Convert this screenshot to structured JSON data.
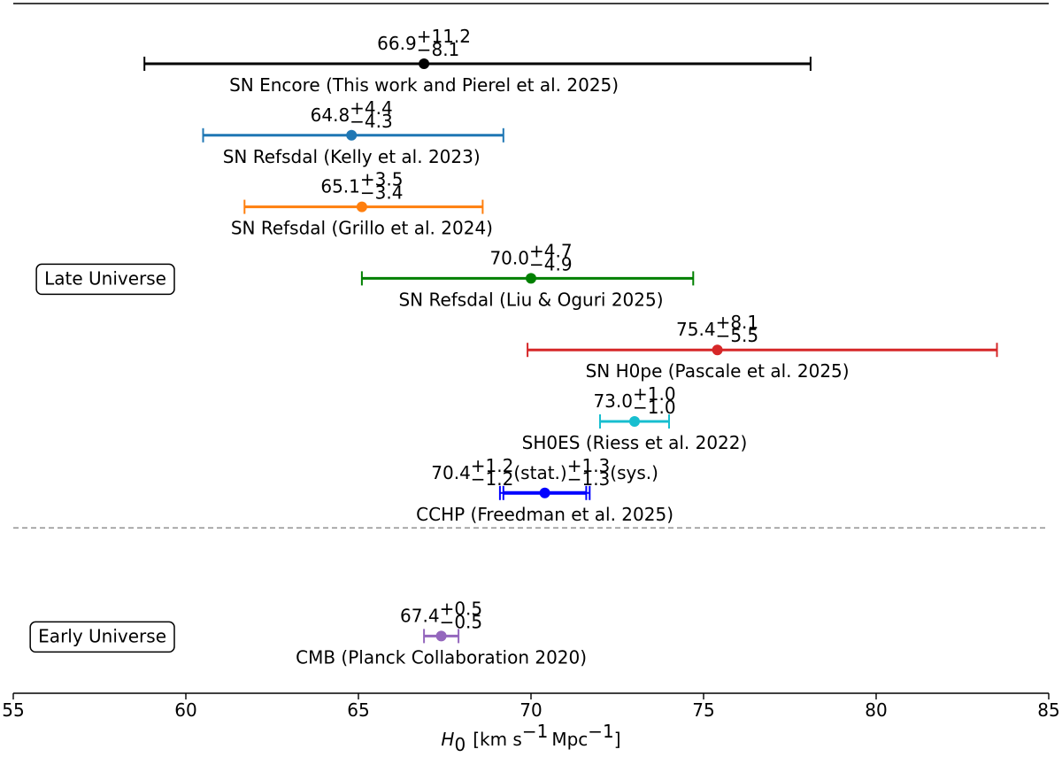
{
  "chart_data": {
    "type": "errorbar",
    "xlim": [
      55,
      85
    ],
    "xticks": [
      55,
      60,
      65,
      70,
      75,
      80,
      85
    ],
    "x_label": {
      "symbol": "H",
      "subscript": "0",
      "parts": [
        "[km s",
        "−1",
        "Mpc",
        "−1",
        "]"
      ]
    },
    "groups": [
      {
        "name": "Late Universe",
        "series": [
          {
            "name": "SN Encore (This work and Pierel et al. 2025)",
            "color": "#000000",
            "value": 66.9,
            "value_label": "66.9",
            "err_plus": 11.2,
            "err_minus": 8.1,
            "err_plus_label": "+11.2",
            "err_minus_label": "−8.1"
          },
          {
            "name": "SN Refsdal (Kelly et al. 2023)",
            "color": "#1f77b4",
            "value": 64.8,
            "value_label": "64.8",
            "err_plus": 4.4,
            "err_minus": 4.3,
            "err_plus_label": "+4.4",
            "err_minus_label": "−4.3"
          },
          {
            "name": "SN Refsdal (Grillo et al. 2024)",
            "color": "#ff7f0e",
            "value": 65.1,
            "value_label": "65.1",
            "err_plus": 3.5,
            "err_minus": 3.4,
            "err_plus_label": "+3.5",
            "err_minus_label": "−3.4"
          },
          {
            "name": "SN Refsdal (Liu & Oguri 2025)",
            "color": "#008000",
            "value": 70.0,
            "value_label": "70.0",
            "err_plus": 4.7,
            "err_minus": 4.9,
            "err_plus_label": "+4.7",
            "err_minus_label": "−4.9"
          },
          {
            "name": "SN H0pe (Pascale et al. 2025)",
            "color": "#d62728",
            "value": 75.4,
            "value_label": "75.4",
            "err_plus": 8.1,
            "err_minus": 5.5,
            "err_plus_label": "+8.1",
            "err_minus_label": "−5.5"
          },
          {
            "name": "SH0ES (Riess et al. 2022)",
            "color": "#17becf",
            "value": 73.0,
            "value_label": "73.0",
            "err_plus": 1.0,
            "err_minus": 1.0,
            "err_plus_label": "+1.0",
            "err_minus_label": "−1.0"
          },
          {
            "name": "CCHP (Freedman et al. 2025)",
            "color": "#0000ff",
            "value": 70.4,
            "value_label": "70.4",
            "err_plus": 1.2,
            "err_minus": 1.2,
            "err_plus_label": "+1.2",
            "err_minus_label": "−1.2",
            "err_note": "(stat.)",
            "sys_plus": 1.3,
            "sys_minus": 1.3,
            "sys_plus_label": "+1.3",
            "sys_minus_label": "−1.3",
            "sys_note": "(sys.)"
          }
        ]
      },
      {
        "name": "Early Universe",
        "series": [
          {
            "name": "CMB (Planck Collaboration 2020)",
            "color": "#9467bd",
            "value": 67.4,
            "value_label": "67.4",
            "err_plus": 0.5,
            "err_minus": 0.5,
            "err_plus_label": "+0.5",
            "err_minus_label": "−0.5"
          }
        ]
      }
    ]
  }
}
